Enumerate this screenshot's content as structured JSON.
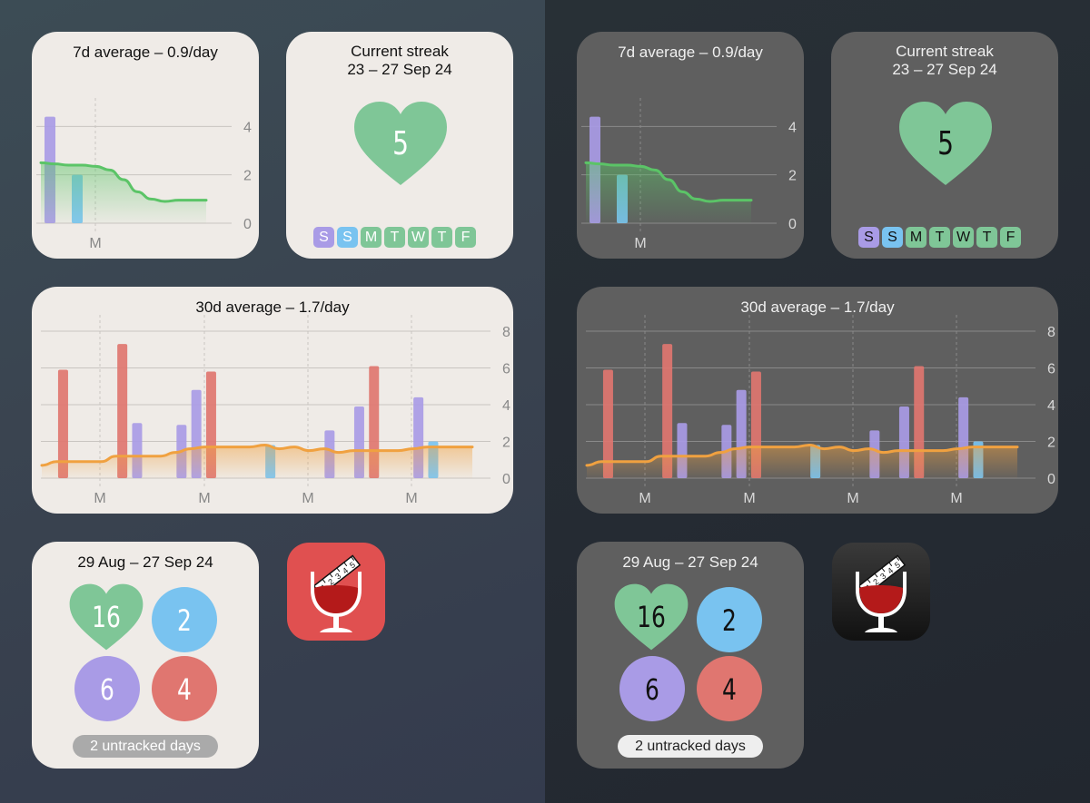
{
  "colors": {
    "green": "#7fc697",
    "blue": "#79c3f0",
    "purple": "#a99be6",
    "red": "#e07670",
    "line_green": "#5bc467",
    "line_orange": "#f0a140"
  },
  "week_widget": {
    "title": "7d average – 0.9/day",
    "y_ticks": [
      "4",
      "2",
      "0"
    ],
    "x_ticks": [
      "M"
    ]
  },
  "streak_widget": {
    "title": "Current streak",
    "date_range": "23 – 27 Sep 24",
    "count": "5",
    "icon": "heart-icon",
    "days": [
      {
        "label": "S",
        "color": "purple"
      },
      {
        "label": "S",
        "color": "blue"
      },
      {
        "label": "M",
        "color": "green"
      },
      {
        "label": "T",
        "color": "green"
      },
      {
        "label": "W",
        "color": "green"
      },
      {
        "label": "T",
        "color": "green"
      },
      {
        "label": "F",
        "color": "green"
      }
    ]
  },
  "month_widget": {
    "title": "30d average – 1.7/day",
    "y_ticks": [
      "8",
      "6",
      "4",
      "2",
      "0"
    ],
    "x_ticks": [
      "M",
      "M",
      "M",
      "M"
    ]
  },
  "summary_widget": {
    "date_range": "29 Aug – 27 Sep 24",
    "green_count": "16",
    "blue_count": "2",
    "purple_count": "6",
    "red_count": "4",
    "untracked": "2 untracked days"
  },
  "app_icon": {
    "icon": "wine-glass-measure-icon",
    "scale_labels": [
      "1",
      "2",
      "3",
      "4",
      "5"
    ]
  },
  "chart_data": [
    {
      "type": "bar",
      "title": "7d average – 0.9/day",
      "ylim": [
        0,
        4.5
      ],
      "y_ticks": [
        0,
        2,
        4
      ],
      "x_tick_labels": [
        "M"
      ],
      "grid": true,
      "bars": [
        {
          "index": 0,
          "value": 4.4,
          "color": "purple"
        },
        {
          "index": 1,
          "value": 2.0,
          "color": "blue"
        }
      ],
      "average_line": {
        "name": "7d average",
        "values": [
          2.5,
          2.45,
          2.4,
          2.4,
          2.35,
          2.2,
          1.8,
          1.3,
          1.0,
          0.9,
          0.95,
          0.95,
          0.95
        ]
      }
    },
    {
      "type": "bar",
      "title": "30d average – 1.7/day",
      "ylim": [
        0,
        8
      ],
      "y_ticks": [
        0,
        2,
        4,
        6,
        8
      ],
      "x_tick_labels": [
        "M",
        "M",
        "M",
        "M"
      ],
      "grid": true,
      "bars": [
        {
          "index": 1,
          "value": 5.9,
          "color": "red"
        },
        {
          "index": 5,
          "value": 7.3,
          "color": "red"
        },
        {
          "index": 6,
          "value": 3.0,
          "color": "purple"
        },
        {
          "index": 9,
          "value": 2.9,
          "color": "purple"
        },
        {
          "index": 10,
          "value": 4.8,
          "color": "purple"
        },
        {
          "index": 11,
          "value": 5.8,
          "color": "red"
        },
        {
          "index": 15,
          "value": 1.8,
          "color": "blue"
        },
        {
          "index": 19,
          "value": 2.6,
          "color": "purple"
        },
        {
          "index": 21,
          "value": 3.9,
          "color": "purple"
        },
        {
          "index": 22,
          "value": 6.1,
          "color": "red"
        },
        {
          "index": 25,
          "value": 4.4,
          "color": "purple"
        },
        {
          "index": 26,
          "value": 2.0,
          "color": "blue"
        }
      ],
      "average_line": {
        "name": "30d average",
        "values": [
          0.7,
          0.9,
          0.9,
          0.9,
          0.9,
          1.2,
          1.2,
          1.2,
          1.2,
          1.4,
          1.6,
          1.7,
          1.7,
          1.7,
          1.7,
          1.8,
          1.6,
          1.7,
          1.5,
          1.6,
          1.4,
          1.5,
          1.5,
          1.5,
          1.5,
          1.6,
          1.7,
          1.7,
          1.7,
          1.7
        ]
      }
    }
  ]
}
